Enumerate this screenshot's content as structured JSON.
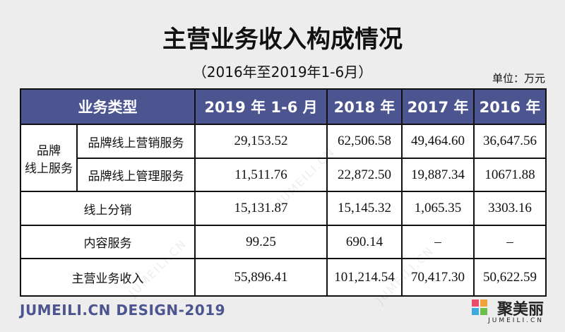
{
  "header": {
    "title": "主营业务收入构成情况",
    "subtitle": "（2016年至2019年1-6月）",
    "unit": "单位：万元"
  },
  "table": {
    "columns": [
      "业务类型",
      "2019 年 1-6 月",
      "2018 年",
      "2017 年",
      "2016 年"
    ],
    "group": [
      "品牌",
      "线上服务"
    ],
    "group_rows": [
      {
        "label": "品牌线上营销服务",
        "values": [
          "29,153.52",
          "62,506.58",
          "49,464.60",
          "36,647.56"
        ]
      },
      {
        "label": "品牌线上管理服务",
        "values": [
          "11,511.76",
          "22,872.50",
          "19,887.34",
          "10671.88"
        ]
      }
    ],
    "rows": [
      {
        "label": "线上分销",
        "values": [
          "15,131.87",
          "15,145.32",
          "1,065.35",
          "3303.16"
        ]
      },
      {
        "label": "内容服务",
        "values": [
          "99.25",
          "690.14",
          "–",
          "–"
        ]
      },
      {
        "label": "主营业务收入",
        "values": [
          "55,896.41",
          "101,214.54",
          "70,417.30",
          "50,622.59"
        ]
      }
    ]
  },
  "footer": {
    "brand": "JUMEILI.CN DESIGN-2019",
    "logo": "聚美丽",
    "logo_sub": "JUMEILI.CN",
    "watermark": "JUMEILI.CN"
  }
}
